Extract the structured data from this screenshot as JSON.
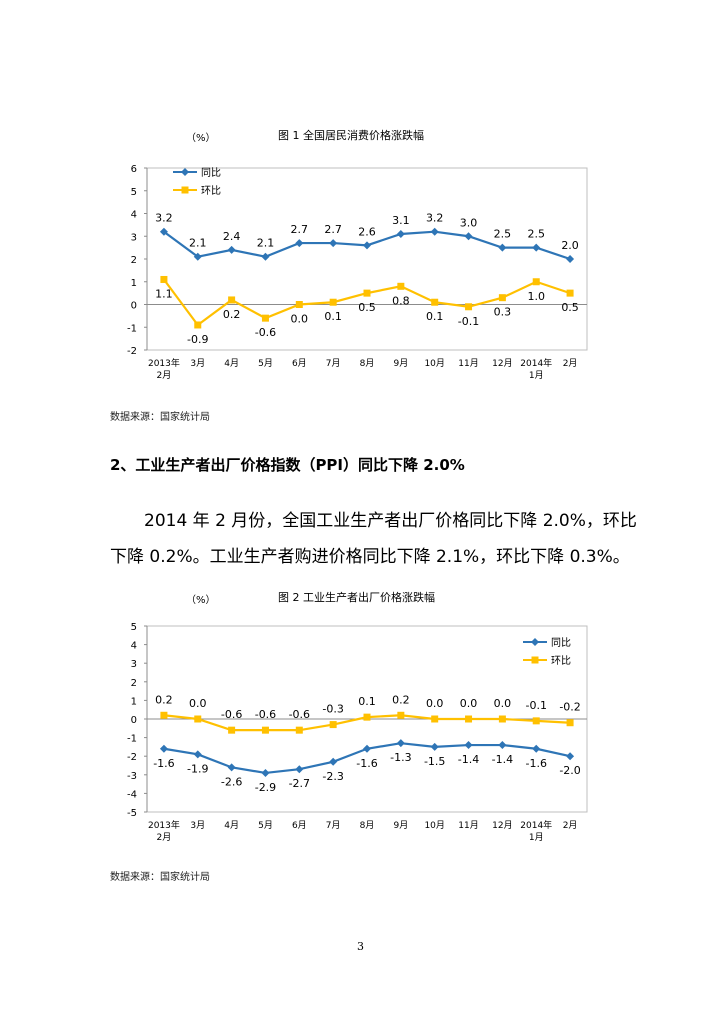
{
  "fig1": {
    "unit": "（%）",
    "title": "图 1    全国居民消费价格涨跌幅",
    "source": "数据来源：国家统计局"
  },
  "fig2": {
    "unit": "（%）",
    "title": "图 2    工业生产者出厂价格涨跌幅",
    "source": "数据来源：国家统计局"
  },
  "section": {
    "heading": "2、工业生产者出厂价格指数（PPI）同比下降 2.0%",
    "para_line1": "2014 年 2 月份，全国工业生产者出厂价格同比下降 2.0%，环比",
    "para_line2": "下降 0.2%。工业生产者购进价格同比下降 2.1%，环比下降 0.3%。"
  },
  "page_number": "3",
  "chart_data": [
    {
      "type": "line",
      "title": "图 1    全国居民消费价格涨跌幅",
      "ylabel": "（%）",
      "ylim": [
        -2,
        6
      ],
      "yticks": [
        "6",
        "5",
        "4",
        "3",
        "2",
        "1",
        "0",
        "-1",
        "-2"
      ],
      "categories": [
        "2013年\n2月",
        "3月",
        "4月",
        "5月",
        "6月",
        "7月",
        "8月",
        "9月",
        "10月",
        "11月",
        "12月",
        "2014年\n1月",
        "2月"
      ],
      "legend": "top-left",
      "series": [
        {
          "name": "同比",
          "color": "#2E75B6",
          "marker": "diamond",
          "values": [
            3.2,
            2.1,
            2.4,
            2.1,
            2.7,
            2.7,
            2.6,
            3.1,
            3.2,
            3.0,
            2.5,
            2.5,
            2.0
          ],
          "labels": [
            "3.2",
            "2.1",
            "2.4",
            "2.1",
            "2.7",
            "2.7",
            "2.6",
            "3.1",
            "3.2",
            "3.0",
            "2.5",
            "2.5",
            "2.0"
          ]
        },
        {
          "name": "环比",
          "color": "#FFC000",
          "marker": "square",
          "values": [
            1.1,
            -0.9,
            0.2,
            -0.6,
            0.0,
            0.1,
            0.5,
            0.8,
            0.1,
            -0.1,
            0.3,
            1.0,
            0.5
          ],
          "labels": [
            "1.1",
            "-0.9",
            "0.2",
            "-0.6",
            "0.0",
            "0.1",
            "0.5",
            "0.8",
            "0.1",
            "-0.1",
            "0.3",
            "1.0",
            "0.5"
          ]
        }
      ]
    },
    {
      "type": "line",
      "title": "图 2    工业生产者出厂价格涨跌幅",
      "ylabel": "（%）",
      "ylim": [
        -5,
        5
      ],
      "yticks": [
        "5",
        "4",
        "3",
        "2",
        "1",
        "0",
        "-1",
        "-2",
        "-3",
        "-4",
        "-5"
      ],
      "categories": [
        "2013年\n2月",
        "3月",
        "4月",
        "5月",
        "6月",
        "7月",
        "8月",
        "9月",
        "10月",
        "11月",
        "12月",
        "2014年\n1月",
        "2月"
      ],
      "legend": "top-right",
      "series": [
        {
          "name": "同比",
          "color": "#2E75B6",
          "marker": "diamond",
          "values": [
            -1.6,
            -1.9,
            -2.6,
            -2.9,
            -2.7,
            -2.3,
            -1.6,
            -1.3,
            -1.5,
            -1.4,
            -1.4,
            -1.6,
            -2.0
          ],
          "labels": [
            "-1.6",
            "-1.9",
            "-2.6",
            "-2.9",
            "-2.7",
            "-2.3",
            "-1.6",
            "-1.3",
            "-1.5",
            "-1.4",
            "-1.4",
            "-1.6",
            "-2.0"
          ]
        },
        {
          "name": "环比",
          "color": "#FFC000",
          "marker": "square",
          "values": [
            0.2,
            0.0,
            -0.6,
            -0.6,
            -0.6,
            -0.3,
            0.1,
            0.2,
            0.0,
            0.0,
            0.0,
            -0.1,
            -0.2
          ],
          "labels": [
            "0.2",
            "0.0",
            "-0.6",
            "-0.6",
            "-0.6",
            "-0.3",
            "0.1",
            "0.2",
            "0.0",
            "0.0",
            "0.0",
            "-0.1",
            "-0.2"
          ]
        }
      ]
    }
  ]
}
